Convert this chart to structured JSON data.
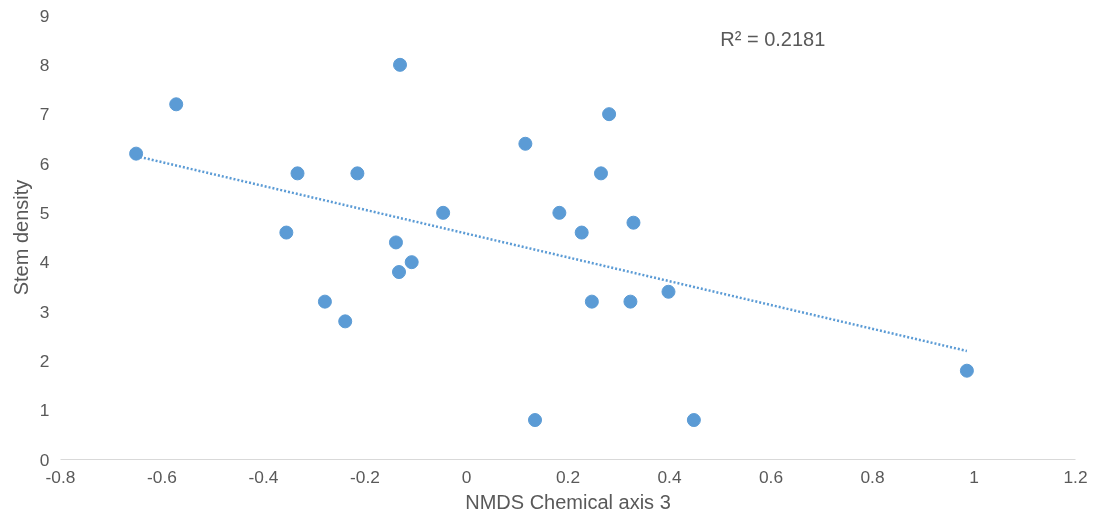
{
  "chart_data": {
    "type": "scatter",
    "xlabel": "NMDS Chemical axis 3",
    "ylabel": "Stem density",
    "xlim": [
      -0.8,
      1.2
    ],
    "xticks": [
      -0.8,
      -0.6,
      -0.4,
      -0.2,
      0,
      0.2,
      0.4,
      0.6,
      0.8,
      1,
      1.2
    ],
    "ylim": [
      0,
      9
    ],
    "yticks": [
      0,
      1,
      2,
      3,
      4,
      5,
      6,
      7,
      8,
      9
    ],
    "grid": false,
    "marker": "circle",
    "annotations": [
      "R² = 0.2181"
    ],
    "series": [
      {
        "color": "#5b9bd5",
        "x": [
          -0.651,
          -0.572,
          -0.131,
          -0.355,
          -0.333,
          -0.215,
          -0.279,
          -0.239,
          -0.139,
          -0.133,
          -0.108,
          -0.046,
          0.116,
          0.135,
          0.183,
          0.227,
          0.247,
          0.265,
          0.281,
          0.323,
          0.329,
          0.398,
          0.448,
          0.986
        ],
        "values": [
          6.2,
          7.2,
          8.0,
          4.6,
          5.8,
          5.8,
          3.2,
          2.8,
          4.4,
          3.8,
          4.0,
          5.0,
          6.4,
          0.8,
          5.0,
          4.6,
          3.2,
          5.8,
          7.0,
          3.2,
          4.8,
          3.4,
          0.8,
          1.8
        ]
      },
      {
        "type": "line",
        "color": "#5b9bd5",
        "line_style": "dotted",
        "marker": "none",
        "x": [
          -0.651,
          0.986
        ],
        "values": [
          6.15,
          2.2
        ]
      }
    ]
  }
}
